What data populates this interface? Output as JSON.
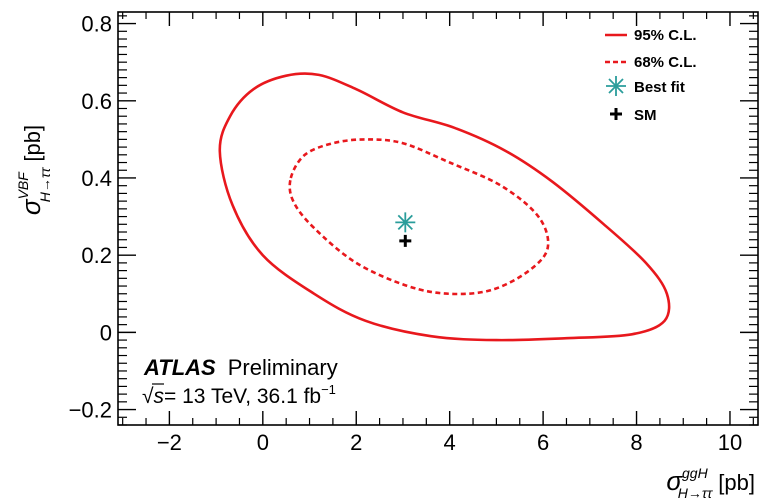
{
  "chart_data": {
    "type": "contour",
    "xlabel": {
      "base": "σ",
      "sup": "ggH",
      "sub": "H→ττ",
      "unit": "[pb]"
    },
    "ylabel": {
      "base": "σ",
      "sup": "VBF",
      "sub": "H→ττ",
      "unit": "[pb]"
    },
    "xlim": [
      -3.1,
      10.6
    ],
    "ylim": [
      -0.24,
      0.83
    ],
    "x_ticks": [
      {
        "value": -2,
        "label": "−2"
      },
      {
        "value": 0,
        "label": "0"
      },
      {
        "value": 2,
        "label": "2"
      },
      {
        "value": 4,
        "label": "4"
      },
      {
        "value": 6,
        "label": "6"
      },
      {
        "value": 8,
        "label": "8"
      },
      {
        "value": 10,
        "label": "10"
      }
    ],
    "y_ticks": [
      {
        "value": -0.2,
        "label": "−0.2"
      },
      {
        "value": 0,
        "label": "0"
      },
      {
        "value": 0.2,
        "label": "0.2"
      },
      {
        "value": 0.4,
        "label": "0.4"
      },
      {
        "value": 0.6,
        "label": "0.6"
      },
      {
        "value": 0.8,
        "label": "0.8"
      }
    ],
    "series": [
      {
        "name": "95% C.L.",
        "style": "solid",
        "color": "#e8181d",
        "points": [
          [
            -0.92,
            0.47
          ],
          [
            -0.7,
            0.56
          ],
          [
            -0.2,
            0.63
          ],
          [
            0.5,
            0.665
          ],
          [
            1.2,
            0.667
          ],
          [
            2.0,
            0.63
          ],
          [
            3.0,
            0.57
          ],
          [
            4.1,
            0.53
          ],
          [
            5.2,
            0.47
          ],
          [
            6.2,
            0.39
          ],
          [
            7.3,
            0.28
          ],
          [
            8.2,
            0.18
          ],
          [
            8.65,
            0.1
          ],
          [
            8.6,
            0.03
          ],
          [
            7.9,
            -0.005
          ],
          [
            6.5,
            -0.015
          ],
          [
            5.0,
            -0.02
          ],
          [
            3.6,
            -0.01
          ],
          [
            2.2,
            0.03
          ],
          [
            1.1,
            0.1
          ],
          [
            0.0,
            0.2
          ],
          [
            -0.65,
            0.33
          ],
          [
            -0.92,
            0.47
          ]
        ]
      },
      {
        "name": "68% C.L.",
        "style": "dashed",
        "color": "#e8181d",
        "points": [
          [
            0.6,
            0.4
          ],
          [
            0.9,
            0.46
          ],
          [
            1.5,
            0.49
          ],
          [
            2.2,
            0.5
          ],
          [
            3.0,
            0.49
          ],
          [
            4.0,
            0.44
          ],
          [
            5.1,
            0.38
          ],
          [
            5.9,
            0.3
          ],
          [
            6.1,
            0.22
          ],
          [
            5.7,
            0.16
          ],
          [
            4.9,
            0.11
          ],
          [
            4.0,
            0.1
          ],
          [
            3.1,
            0.12
          ],
          [
            2.0,
            0.18
          ],
          [
            1.1,
            0.27
          ],
          [
            0.65,
            0.34
          ],
          [
            0.6,
            0.4
          ]
        ]
      }
    ],
    "markers": [
      {
        "name": "Best fit",
        "x": 3.05,
        "y": 0.285,
        "symbol": "asterisk",
        "color": "#2a9d9b"
      },
      {
        "name": "SM",
        "x": 3.05,
        "y": 0.237,
        "symbol": "plus",
        "color": "#000000"
      }
    ],
    "legend": {
      "position": "top-right",
      "entries": [
        {
          "label": "95% C.L.",
          "kind": "solid-line"
        },
        {
          "label": "68% C.L.",
          "kind": "dashed-line"
        },
        {
          "label": "Best fit",
          "kind": "asterisk"
        },
        {
          "label": "SM",
          "kind": "plus"
        }
      ]
    },
    "annotations": {
      "experiment": "ATLAS",
      "status": "Preliminary",
      "sqrt_prefix": "√",
      "s_symbol": "s",
      "energy": "= 13 TeV, 36.1 fb",
      "lumi_exponent": "−1"
    },
    "grid": false
  }
}
